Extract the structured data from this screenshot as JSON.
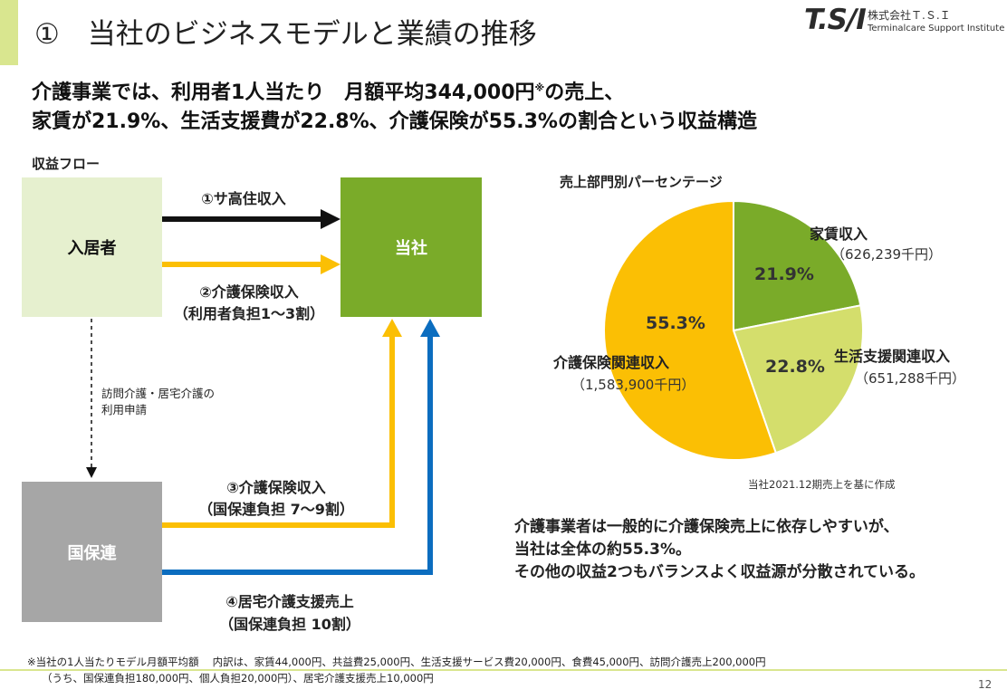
{
  "header": {
    "title": "①　当社のビジネスモデルと業績の推移",
    "logo_mark": "T.S/I",
    "logo_company_jp": "株式会社Ｔ.Ｓ.Ｉ",
    "logo_company_en": "Terminalcare Support Institute"
  },
  "headline": {
    "line1_main": "介護事業では、利用者1人当たり　月額平均344,000円",
    "line1_mark": "※",
    "line1_end": "の売上、",
    "line2": "家賃が21.9%、生活支援費が22.8%、介護保険が55.3%の割合という収益構造"
  },
  "flow": {
    "section_title": "収益フロー",
    "resident": "入居者",
    "company": "当社",
    "national_health": "国保連",
    "arrow1_label": "①サ高住収入",
    "arrow2_label_line1": "②介護保険収入",
    "arrow2_label_line2": "（利用者負担1～3割）",
    "arrow3_label_line1": "③介護保険収入",
    "arrow3_label_line2": "（国保連負担 7～9割）",
    "arrow4_label_line1": "④居宅介護支援売上",
    "arrow4_label_line2": "（国保連負担 10割）",
    "application_line1": "訪問介護・居宅介護の",
    "application_line2": "利用申請"
  },
  "colors": {
    "green": "#7aab29",
    "light_green": "#e6f0cf",
    "yellow": "#fbbf04",
    "light_yellow_green": "#d4de6c",
    "gray": "#a6a6a6",
    "blue": "#0b6dbf",
    "black": "#111111"
  },
  "chart_data": {
    "type": "pie",
    "title": "売上部門別パーセンテージ",
    "slices": [
      {
        "name": "家賃収入",
        "amount": "（626,239千円）",
        "value": 21.9,
        "pct_label": "21.9%",
        "color": "#7aab29"
      },
      {
        "name": "生活支援関連収入",
        "amount": "（651,288千円）",
        "value": 22.8,
        "pct_label": "22.8%",
        "color": "#d4de6c"
      },
      {
        "name": "介護保険関連収入",
        "amount": "（1,583,900千円）",
        "value": 55.3,
        "pct_label": "55.3%",
        "color": "#fbbf04"
      }
    ],
    "source_note": "当社2021.12期売上を基に作成"
  },
  "summary": {
    "line1": "介護事業者は一般的に介護保険売上に依存しやすいが、",
    "line2": "当社は全体の約55.3%。",
    "line3": "その他の収益2つもバランスよく収益源が分散されている。"
  },
  "footnote": {
    "line1": "※当社の1人当たりモデル月額平均額　 内訳は、家賃44,000円、共益費25,000円、生活支援サービス費20,000円、食費45,000円、訪問介護売上200,000円",
    "line2": "（うち、国保連負担180,000円、個人負担20,000円）、居宅介護支援売上10,000円"
  },
  "page_number": "12"
}
